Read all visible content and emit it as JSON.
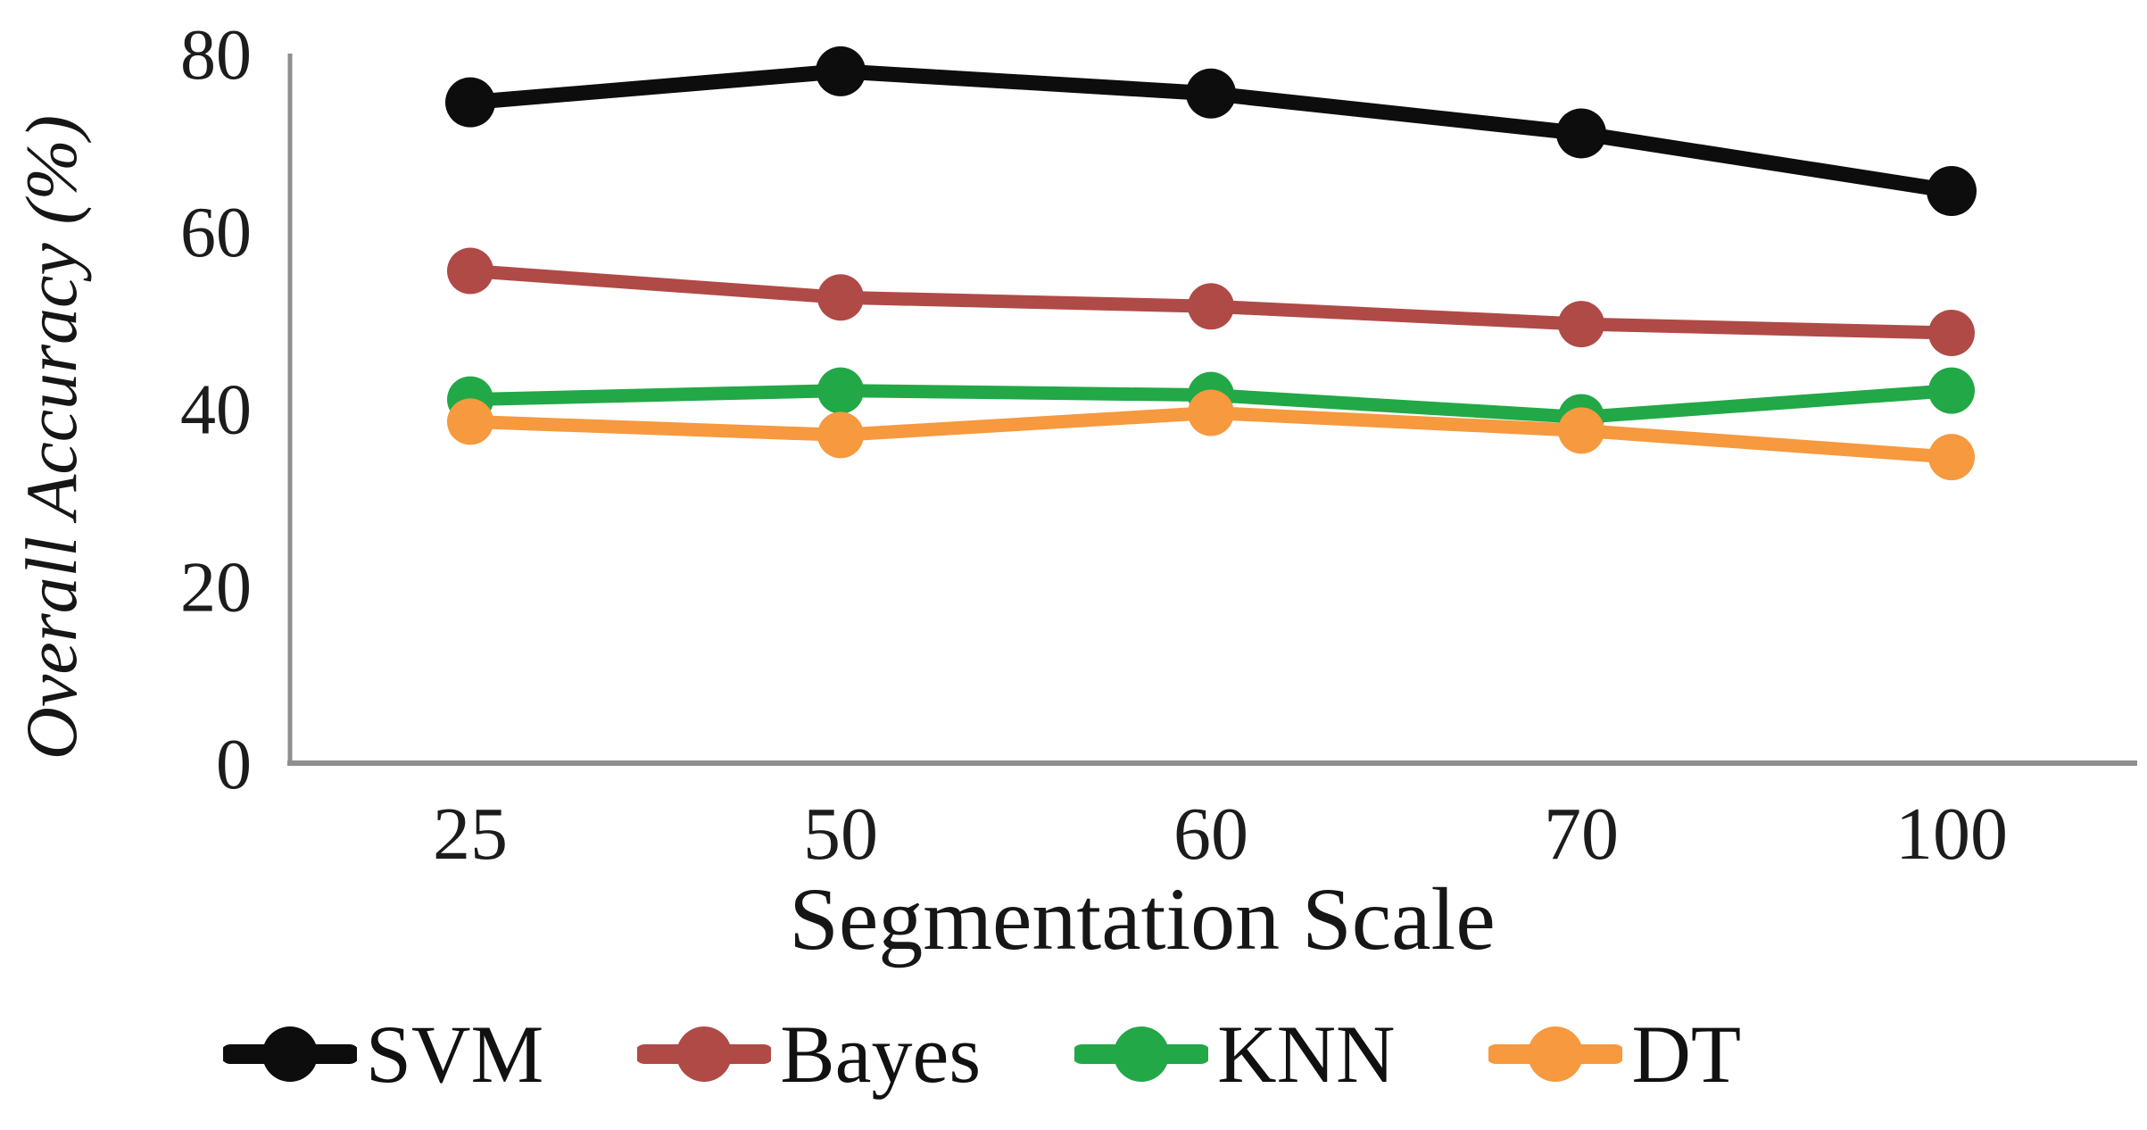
{
  "chart_data": {
    "type": "line",
    "title": "",
    "xlabel": "Segmentation Scale",
    "ylabel": "Overall Accuracy (%)",
    "categories": [
      "25",
      "50",
      "60",
      "70",
      "100"
    ],
    "y_ticks": [
      "0",
      "20",
      "40",
      "60",
      "80"
    ],
    "y_tick_values": [
      0,
      20,
      40,
      60,
      80
    ],
    "ylim": [
      0,
      80
    ],
    "grid": false,
    "legend_position": "bottom",
    "axis_color": "#8e8e8e",
    "tick_text_color": "#1c1c1c",
    "series": [
      {
        "name": "SVM",
        "color": "#0d0d0d",
        "values": [
          74.5,
          78.0,
          75.5,
          71.0,
          64.5
        ]
      },
      {
        "name": "Bayes",
        "color": "#b04a47",
        "values": [
          55.5,
          52.5,
          51.5,
          49.5,
          48.5
        ]
      },
      {
        "name": "KNN",
        "color": "#22a847",
        "values": [
          41.0,
          42.0,
          41.5,
          39.0,
          42.0
        ]
      },
      {
        "name": "DT",
        "color": "#f6993f",
        "values": [
          38.5,
          37.0,
          39.5,
          37.5,
          34.5
        ]
      }
    ]
  }
}
